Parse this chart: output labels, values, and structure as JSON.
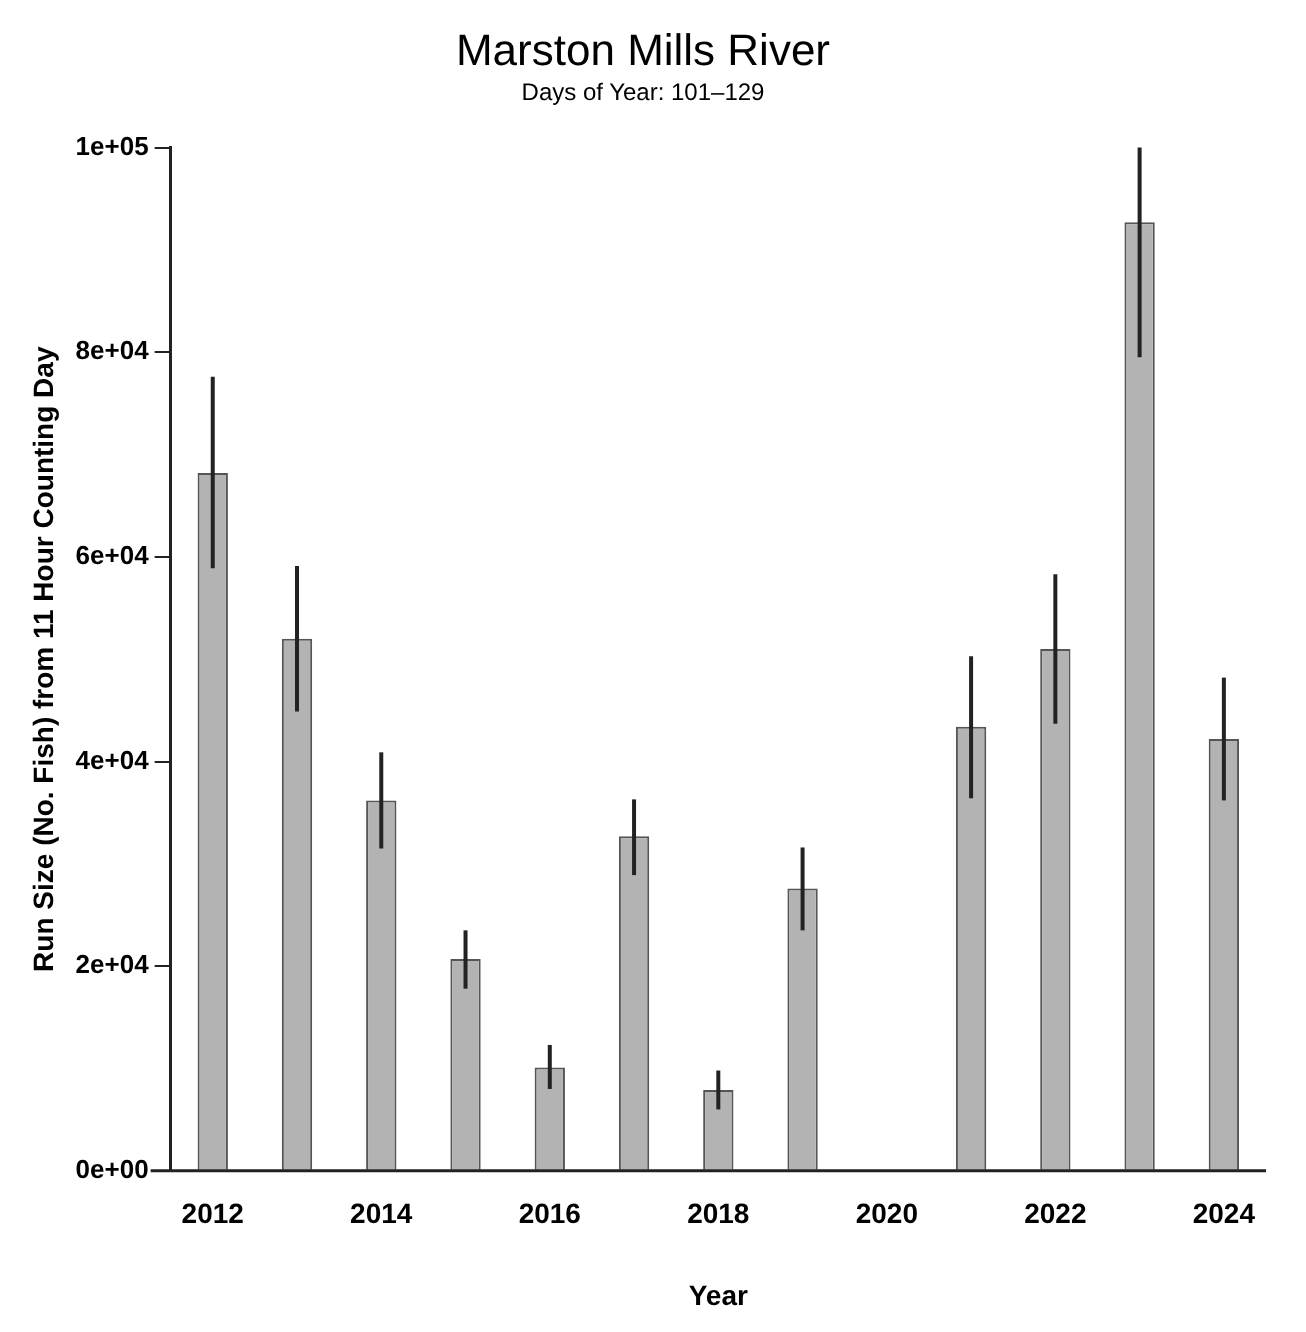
{
  "chart_data": {
    "type": "bar",
    "title": "Marston Mills River",
    "subtitle": "Days of Year: 101–129",
    "xlabel": "Year",
    "ylabel": "Run Size (No. Fish) from 11 Hour Counting Day",
    "categories": [
      "2012",
      null,
      "2014",
      null,
      "2016",
      null,
      "2018",
      null,
      "2020",
      null,
      "2022",
      null,
      "2024"
    ],
    "values": [
      68200,
      52000,
      36200,
      20700,
      10100,
      32700,
      7900,
      27600,
      null,
      43400,
      51000,
      92700,
      42200
    ],
    "errors": [
      [
        58900,
        77600
      ],
      [
        44900,
        59100
      ],
      [
        31500,
        40900
      ],
      [
        17800,
        23500
      ],
      [
        8000,
        12300
      ],
      [
        28900,
        36300
      ],
      [
        6000,
        9800
      ],
      [
        23500,
        31600
      ],
      null,
      [
        36400,
        50300
      ],
      [
        43700,
        58300
      ],
      [
        79500,
        100000
      ],
      [
        36200,
        48200
      ]
    ],
    "color": "#b3b3b3",
    "ylim": [
      0,
      100000
    ],
    "yticks": [
      {
        "value": 0,
        "label": "0e+00"
      },
      {
        "value": 20000,
        "label": "2e+04"
      },
      {
        "value": 40000,
        "label": "4e+04"
      },
      {
        "value": 60000,
        "label": "6e+04"
      },
      {
        "value": 80000,
        "label": "8e+04"
      },
      {
        "value": 100000,
        "label": "1e+05"
      }
    ],
    "grid": false,
    "legend": false
  }
}
